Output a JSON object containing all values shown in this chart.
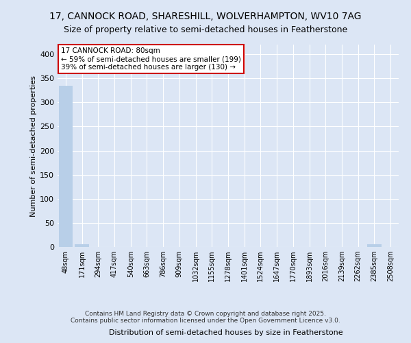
{
  "title1": "17, CANNOCK ROAD, SHARESHILL, WOLVERHAMPTON, WV10 7AG",
  "title2": "Size of property relative to semi-detached houses in Featherstone",
  "xlabel": "Distribution of semi-detached houses by size in Featherstone",
  "ylabel": "Number of semi-detached properties",
  "categories": [
    "48sqm",
    "171sqm",
    "294sqm",
    "417sqm",
    "540sqm",
    "663sqm",
    "786sqm",
    "909sqm",
    "1032sqm",
    "1155sqm",
    "1278sqm",
    "1401sqm",
    "1524sqm",
    "1647sqm",
    "1770sqm",
    "1893sqm",
    "2016sqm",
    "2139sqm",
    "2262sqm",
    "2385sqm",
    "2508sqm"
  ],
  "values": [
    335,
    5,
    0,
    0,
    0,
    0,
    0,
    0,
    0,
    0,
    0,
    0,
    0,
    0,
    0,
    0,
    0,
    0,
    0,
    5,
    0
  ],
  "bar_color": "#b8cfe8",
  "annotation_text": "17 CANNOCK ROAD: 80sqm\n← 59% of semi-detached houses are smaller (199)\n39% of semi-detached houses are larger (130) →",
  "annotation_box_edgecolor": "#cc0000",
  "footer1": "Contains HM Land Registry data © Crown copyright and database right 2025.",
  "footer2": "Contains public sector information licensed under the Open Government Licence v3.0.",
  "ylim": [
    0,
    420
  ],
  "yticks": [
    0,
    50,
    100,
    150,
    200,
    250,
    300,
    350,
    400
  ],
  "bg_color": "#dce6f5",
  "fig_bg_color": "#dce6f5",
  "grid_color": "#ffffff",
  "title1_fontsize": 10,
  "title2_fontsize": 9,
  "ylabel_fontsize": 8,
  "xlabel_fontsize": 8
}
